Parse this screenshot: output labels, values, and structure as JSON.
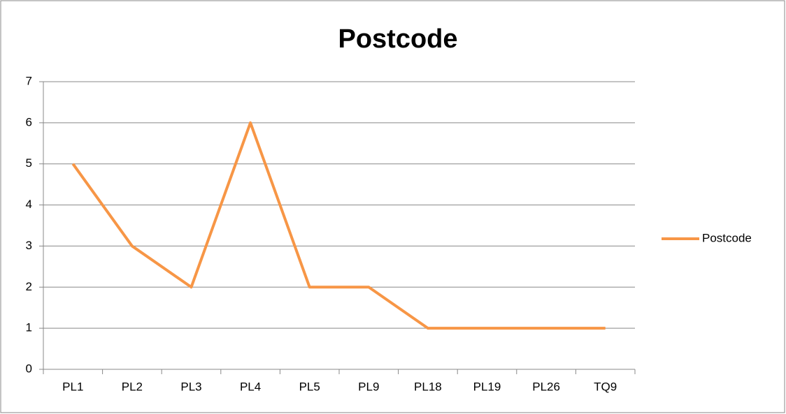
{
  "chart_data": {
    "type": "line",
    "title": "Postcode",
    "categories": [
      "PL1",
      "PL2",
      "PL3",
      "PL4",
      "PL5",
      "PL9",
      "PL18",
      "PL19",
      "PL26",
      "TQ9"
    ],
    "series": [
      {
        "name": "Postcode",
        "color": "#f79646",
        "values": [
          5,
          3,
          2,
          6,
          2,
          2,
          1,
          1,
          1,
          1
        ]
      }
    ],
    "ylim": [
      0,
      7
    ],
    "yticks": [
      0,
      1,
      2,
      3,
      4,
      5,
      6,
      7
    ],
    "grid": true,
    "legend": "right"
  }
}
